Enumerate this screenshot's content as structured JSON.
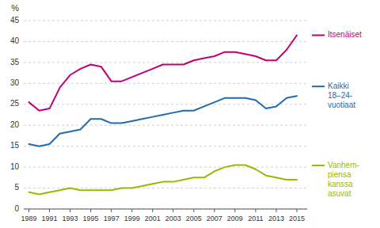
{
  "chart_data": {
    "type": "line",
    "ylabel": "%",
    "x": [
      1989,
      1990,
      1991,
      1992,
      1993,
      1994,
      1995,
      1996,
      1997,
      1998,
      1999,
      2000,
      2001,
      2002,
      2003,
      2004,
      2005,
      2006,
      2007,
      2008,
      2009,
      2010,
      2011,
      2012,
      2013,
      2014,
      2015
    ],
    "series": [
      {
        "name": "Itsenäiset",
        "color": "#C0007A",
        "values": [
          25.5,
          23.5,
          24.0,
          29.0,
          32.0,
          33.5,
          34.5,
          34.0,
          30.5,
          30.5,
          31.5,
          32.5,
          33.5,
          34.5,
          34.5,
          34.5,
          35.5,
          36.0,
          36.5,
          37.5,
          37.5,
          37.0,
          36.5,
          35.5,
          35.5,
          38.0,
          41.5
        ]
      },
      {
        "name": "Kaikki\n18–24-\nvuotiaat",
        "color": "#1F6BB0",
        "values": [
          15.5,
          15.0,
          15.5,
          18.0,
          18.5,
          19.0,
          21.5,
          21.5,
          20.5,
          20.5,
          21.0,
          21.5,
          22.0,
          22.5,
          23.0,
          23.5,
          23.5,
          24.5,
          25.5,
          26.5,
          26.5,
          26.5,
          26.0,
          24.0,
          24.5,
          26.5,
          27.0
        ]
      },
      {
        "name": "Vanhem-\npiensa\nkanssa\nasuvat",
        "color": "#9BB800",
        "values": [
          4.0,
          3.5,
          4.0,
          4.5,
          5.0,
          4.5,
          4.5,
          4.5,
          4.5,
          5.0,
          5.0,
          5.5,
          6.0,
          6.5,
          6.5,
          7.0,
          7.5,
          7.5,
          9.0,
          10.0,
          10.5,
          10.5,
          9.5,
          8.0,
          7.5,
          7.0,
          7.0
        ]
      }
    ],
    "xlim": [
      1988.5,
      2016
    ],
    "xticks": [
      1989,
      1991,
      1993,
      1995,
      1997,
      1999,
      2001,
      2003,
      2005,
      2007,
      2009,
      2011,
      2013,
      2015
    ],
    "ylim": [
      0,
      45
    ],
    "yticks": [
      0,
      5,
      10,
      15,
      20,
      25,
      30,
      35,
      40,
      45
    ],
    "grid": true
  }
}
